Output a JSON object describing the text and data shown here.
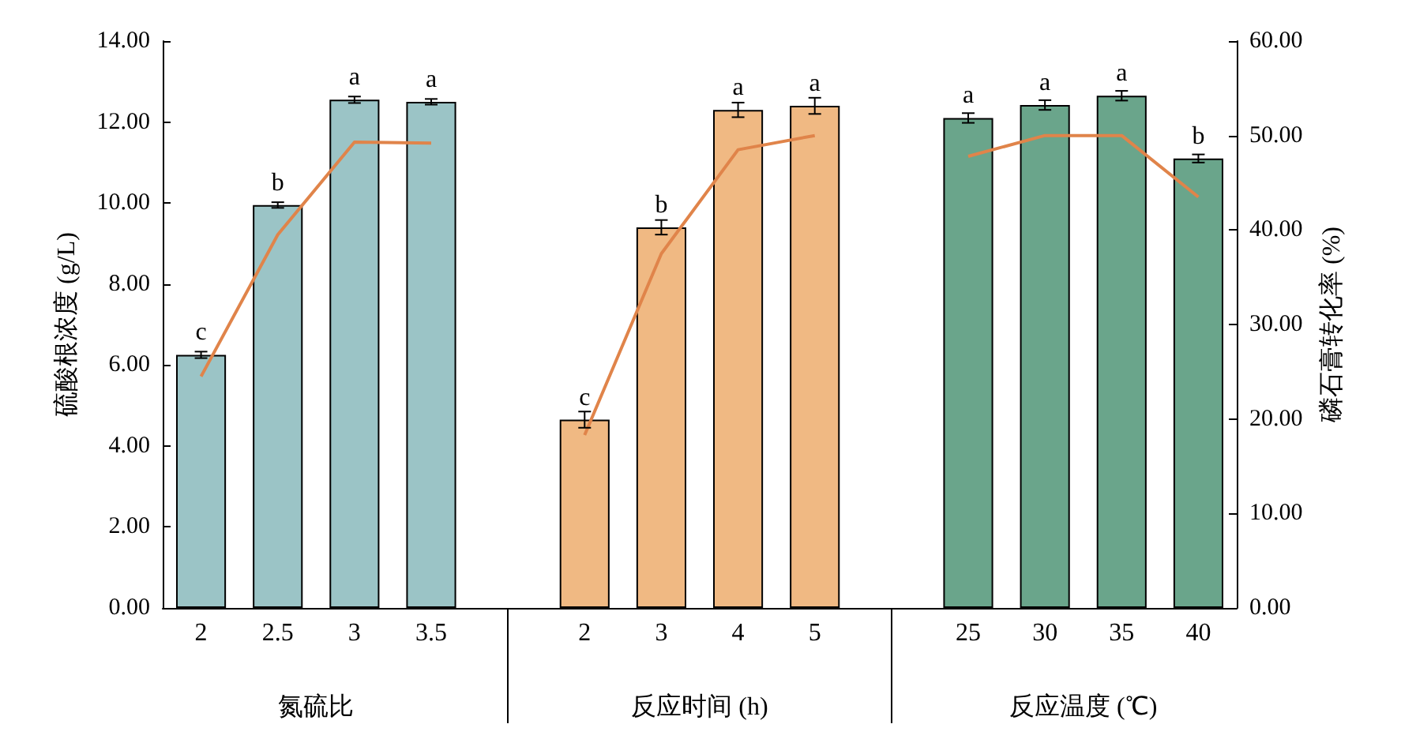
{
  "chart_data": {
    "type": "bar",
    "ylabel": "硫酸根浓度 (g/L)",
    "y2label": "磷石膏转化率 (%)",
    "categories": [
      "2",
      "2.5",
      "3",
      "3.5",
      null,
      "2",
      "3",
      "4",
      "5",
      null,
      "25",
      "30",
      "35",
      "40"
    ],
    "annotations": [
      "氮硫比",
      "反应时间 (h)",
      "反应温度 (℃)"
    ],
    "series": [
      {
        "values": [
          6.25,
          9.95,
          12.55,
          12.5,
          null,
          4.65,
          9.4,
          12.3,
          12.4,
          null,
          12.1,
          12.42,
          12.65,
          11.1
        ],
        "colors": [
          "#9bc4c6",
          "#9bc4c6",
          "#9bc4c6",
          "#9bc4c6",
          null,
          "#f0b983",
          "#f0b983",
          "#f0b983",
          "#f0b983",
          null,
          "#6aa58b",
          "#6aa58b",
          "#6aa58b",
          "#6aa58b"
        ],
        "errors": [
          0.08,
          0.07,
          0.08,
          0.07,
          null,
          0.2,
          0.18,
          0.18,
          0.2,
          null,
          0.12,
          0.12,
          0.12,
          0.1
        ],
        "value_labels": [
          "c",
          "b",
          "a",
          "a",
          null,
          "c",
          "b",
          "a",
          "a",
          null,
          "a",
          "a",
          "a",
          "b"
        ]
      },
      {
        "type": "line",
        "axis": "y2",
        "color": "#e0844a",
        "values": [
          24.5,
          39.5,
          49.3,
          49.2,
          null,
          18.3,
          37.5,
          48.5,
          50,
          null,
          47.8,
          50,
          50,
          43.5
        ]
      }
    ],
    "ylim": [
      0,
      14
    ],
    "yticks": [
      {
        "value": 0,
        "label": "0.00"
      },
      {
        "value": 2,
        "label": "2.00"
      },
      {
        "value": 4,
        "label": "4.00"
      },
      {
        "value": 6,
        "label": "6.00"
      },
      {
        "value": 8,
        "label": "8.00"
      },
      {
        "value": 10,
        "label": "10.00"
      },
      {
        "value": 12,
        "label": "12.00"
      },
      {
        "value": 14,
        "label": "14.00"
      }
    ],
    "y2lim": [
      0,
      60
    ],
    "y2ticks": [
      {
        "value": 0,
        "label": "0.00"
      },
      {
        "value": 10,
        "label": "10.00"
      },
      {
        "value": 20,
        "label": "20.00"
      },
      {
        "value": 30,
        "label": "30.00"
      },
      {
        "value": 40,
        "label": "40.00"
      },
      {
        "value": 50,
        "label": "50.00"
      },
      {
        "value": 60,
        "label": "60.00"
      }
    ],
    "grid": false,
    "marker": "none",
    "line_style": "solid"
  }
}
